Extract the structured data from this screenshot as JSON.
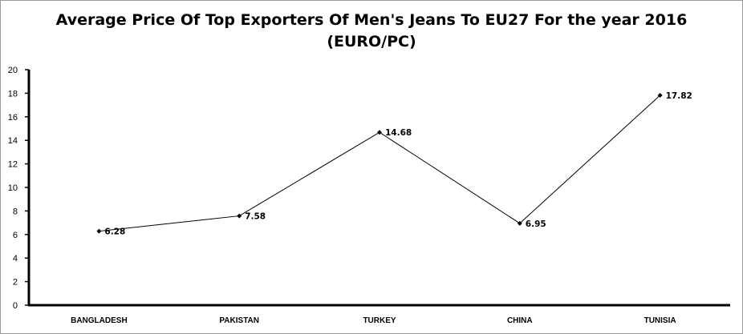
{
  "chart_data": {
    "type": "line",
    "title": "Average Price Of Top Exporters Of Men's Jeans To EU27 For the year 2016",
    "subtitle": "(EURO/PC)",
    "categories": [
      "BANGLADESH",
      "PAKISTAN",
      "TURKEY",
      "CHINA",
      "TUNISIA"
    ],
    "values": [
      6.28,
      7.58,
      14.68,
      6.95,
      17.82
    ],
    "data_labels": [
      "6.28",
      "7.58",
      "14.68",
      "6.95",
      "17.82"
    ],
    "ylim": [
      0,
      20
    ],
    "yticks": [
      0,
      2,
      4,
      6,
      8,
      10,
      12,
      14,
      16,
      18,
      20
    ],
    "xlabel": "",
    "ylabel": "",
    "grid": false,
    "legend": "none",
    "line_color": "#000000"
  }
}
